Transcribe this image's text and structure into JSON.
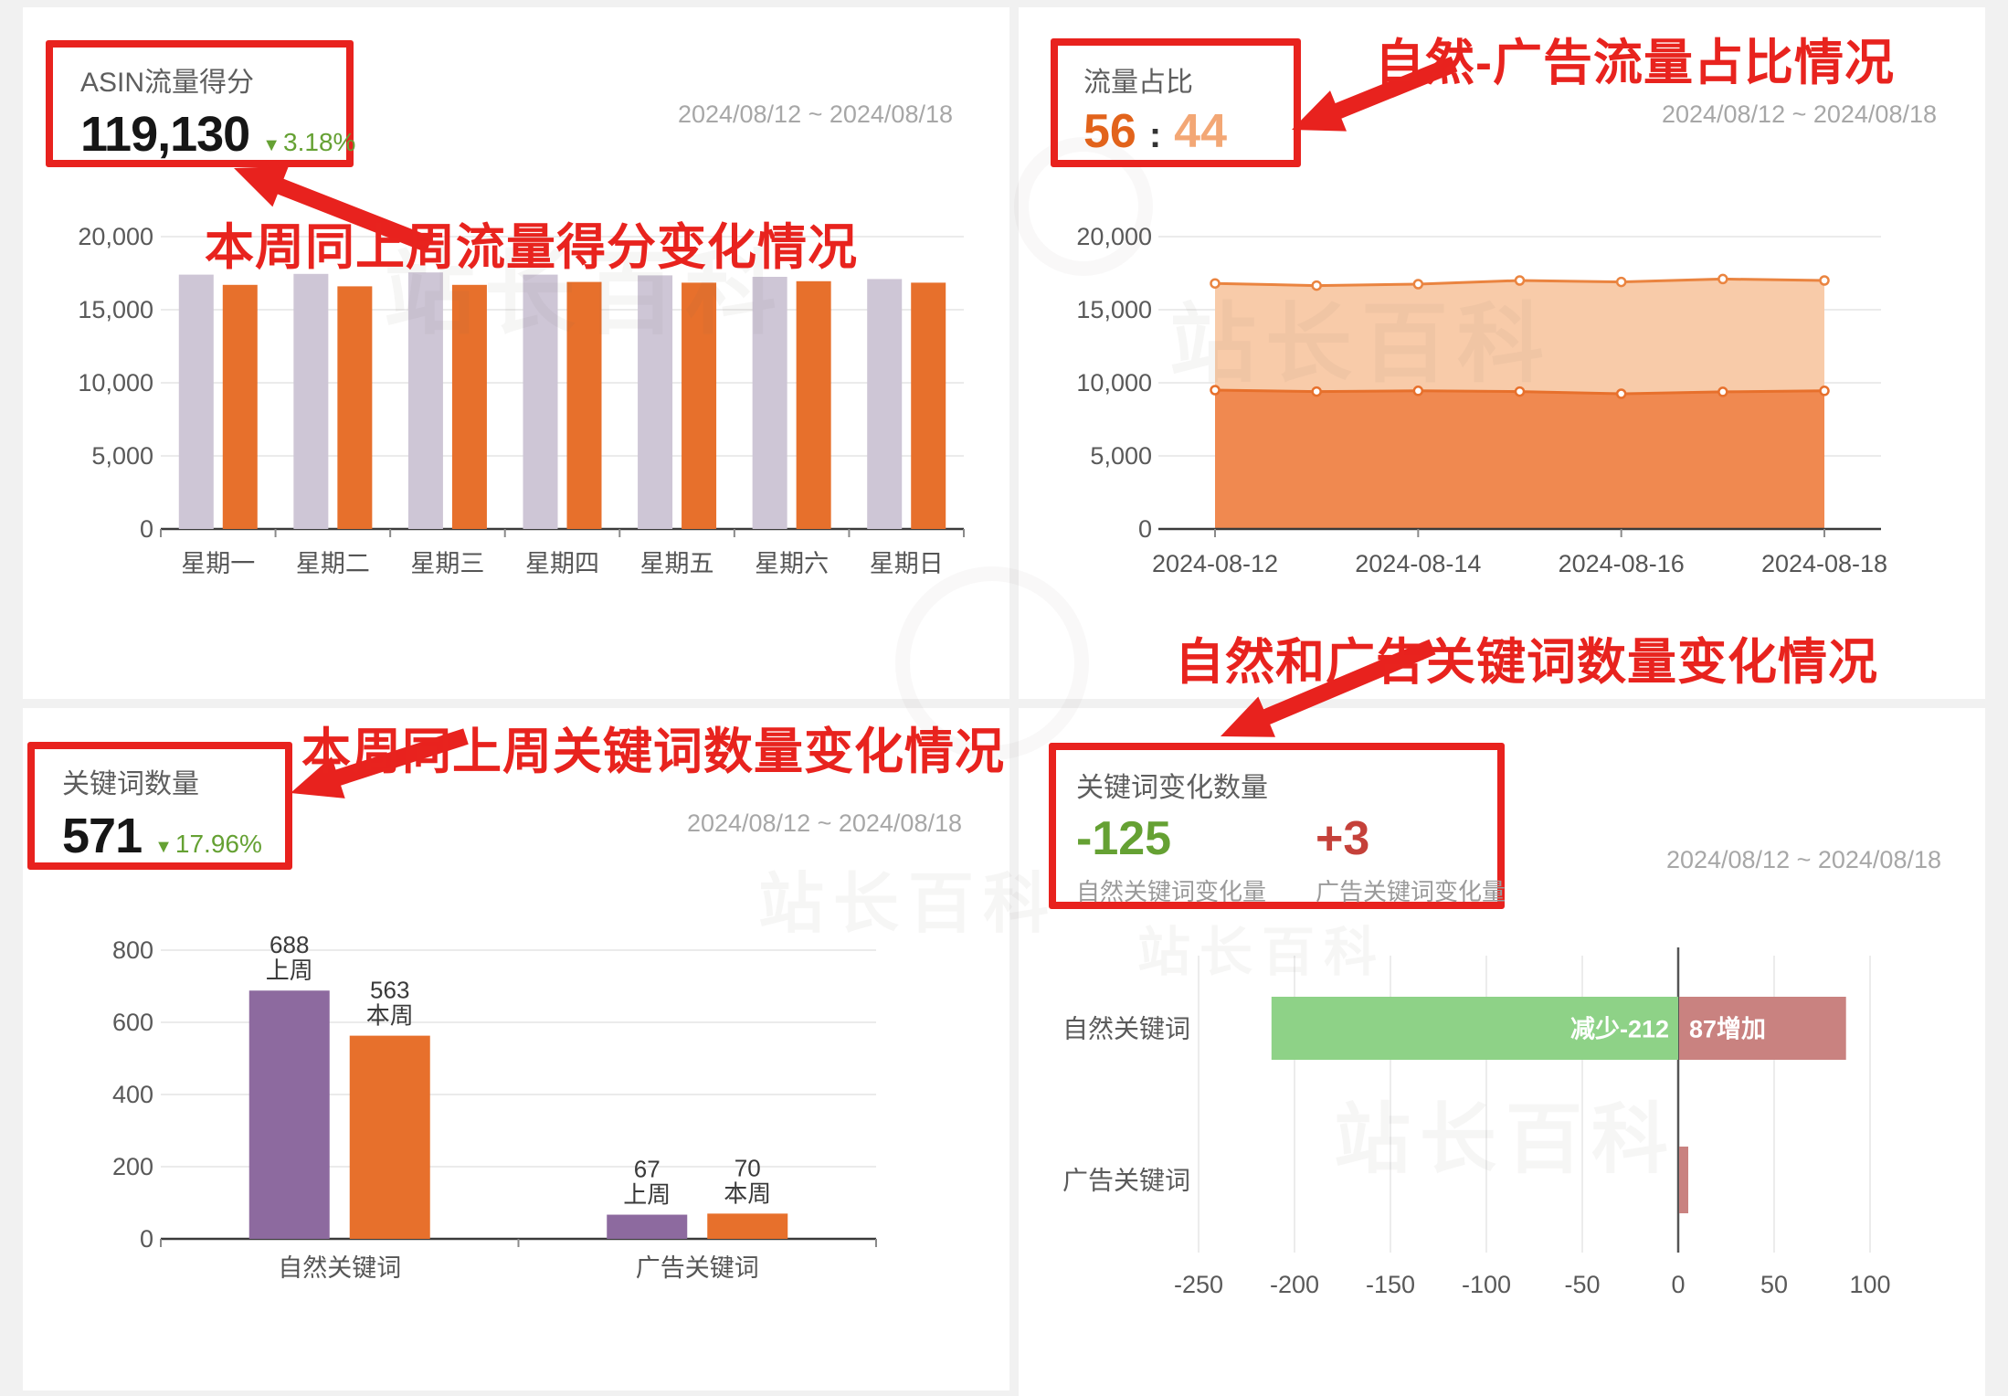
{
  "watermark_text": "站长百科",
  "annotations": {
    "traffic_score": "本周同上周流量得分变化情况",
    "traffic_ratio": "自然-广告流量占比情况",
    "keyword_count": "本周同上周关键词数量变化情况",
    "keyword_change": "自然和广告关键词数量变化情况"
  },
  "panels": {
    "asin_score": {
      "title": "ASIN流量得分",
      "value": "119,130",
      "delta_icon": "▼",
      "delta": "3.18%",
      "date_range": "2024/08/12 ~ 2024/08/18"
    },
    "traffic_ratio": {
      "title": "流量占比",
      "left_value": "56",
      "separator": ":",
      "right_value": "44",
      "date_range": "2024/08/12 ~ 2024/08/18"
    },
    "keyword_count": {
      "title": "关键词数量",
      "value": "571",
      "delta_icon": "▼",
      "delta": "17.96%",
      "date_range": "2024/08/12 ~ 2024/08/18"
    },
    "keyword_change": {
      "title": "关键词变化数量",
      "natural_value": "-125",
      "natural_label": "自然关键词变化量",
      "ad_value": "+3",
      "ad_label": "广告关键词变化量",
      "date_range": "2024/08/12 ~ 2024/08/18"
    }
  },
  "colors": {
    "accent_red": "#e8221e",
    "orange": "#e7702c",
    "lavender": "#cec6d6",
    "purple": "#8d6a9f",
    "area_natural_fill": "#f08950",
    "area_ad_fill": "#f8cba9",
    "green_stat": "#65a133",
    "red_stat": "#c5413a",
    "decrease_green": "#8ed287",
    "increase_rose": "#c98280"
  },
  "chart_data": [
    {
      "id": "asin-week-bars",
      "type": "bar",
      "categories": [
        "星期一",
        "星期二",
        "星期三",
        "星期四",
        "星期五",
        "星期六",
        "星期日"
      ],
      "series": [
        {
          "name": "上周",
          "color": "#cec6d6",
          "values": [
            17400,
            17450,
            17550,
            17400,
            17350,
            17250,
            17100
          ]
        },
        {
          "name": "本周",
          "color": "#e7702c",
          "values": [
            16700,
            16600,
            16700,
            16900,
            16850,
            16950,
            16850
          ]
        }
      ],
      "ylim": [
        0,
        20000
      ],
      "yticks": [
        0,
        5000,
        10000,
        15000,
        20000
      ],
      "ytick_labels": [
        "0",
        "5,000",
        "10,000",
        "15,000",
        "20,000"
      ],
      "grid": true,
      "legend_position": "none"
    },
    {
      "id": "traffic-area",
      "type": "area",
      "stacked": true,
      "x": [
        "2024-08-12",
        "2024-08-13",
        "2024-08-14",
        "2024-08-15",
        "2024-08-16",
        "2024-08-17",
        "2024-08-18"
      ],
      "visible_xticks": [
        "2024-08-12",
        "2024-08-14",
        "2024-08-16",
        "2024-08-18"
      ],
      "series": [
        {
          "name": "自然流量",
          "line_color": "#e7702c",
          "fill_color": "#f08950",
          "values": [
            9500,
            9400,
            9450,
            9400,
            9250,
            9380,
            9450
          ]
        },
        {
          "name": "广告流量",
          "line_color": "#ea8440",
          "fill_color": "#f8cba9",
          "values": [
            7300,
            7250,
            7300,
            7600,
            7650,
            7720,
            7550
          ]
        }
      ],
      "ratio_label": "56:44",
      "ylim": [
        0,
        20000
      ],
      "yticks": [
        0,
        5000,
        10000,
        15000,
        20000
      ],
      "ytick_labels": [
        "0",
        "5,000",
        "10,000",
        "15,000",
        "20,000"
      ],
      "grid": true,
      "legend_position": "none"
    },
    {
      "id": "keyword-bars",
      "type": "bar",
      "categories": [
        "自然关键词",
        "广告关键词"
      ],
      "series": [
        {
          "name": "上周",
          "color": "#8d6a9f",
          "values": [
            688,
            67
          ]
        },
        {
          "name": "本周",
          "color": "#e7702c",
          "values": [
            563,
            70
          ]
        }
      ],
      "bar_labels": true,
      "ylim": [
        0,
        800
      ],
      "yticks": [
        0,
        200,
        400,
        600,
        800
      ],
      "ytick_labels": [
        "0",
        "200",
        "400",
        "600",
        "800"
      ],
      "grid": true,
      "legend_position": "none"
    },
    {
      "id": "keyword-change",
      "type": "diverging-horizontal-bar",
      "rows": [
        {
          "label": "自然关键词",
          "decrease": -212,
          "increase": 87,
          "decrease_text": "减少-212",
          "increase_text": "87增加"
        },
        {
          "label": "广告关键词",
          "decrease": 0,
          "increase": 3,
          "decrease_text": "",
          "increase_text": ""
        }
      ],
      "xlim": [
        -250,
        100
      ],
      "xticks": [
        -250,
        -200,
        -150,
        -100,
        -50,
        0,
        50,
        100
      ],
      "xtick_labels": [
        "-250",
        "-200",
        "-150",
        "-100",
        "-50",
        "0",
        "50",
        "100"
      ],
      "decrease_color": "#8ed287",
      "increase_color": "#c98280",
      "grid": true
    }
  ]
}
